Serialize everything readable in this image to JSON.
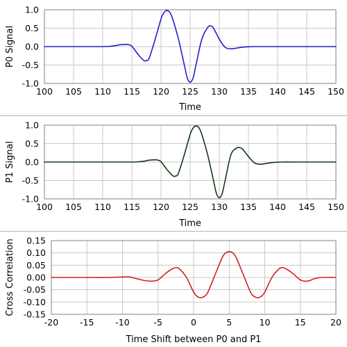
{
  "chart_data": [
    {
      "type": "line",
      "xlabel": "Time",
      "ylabel": "P0 Signal",
      "xlim": [
        100,
        150
      ],
      "ylim": [
        -1.0,
        1.0
      ],
      "xticks": [
        100,
        105,
        110,
        115,
        120,
        125,
        130,
        135,
        140,
        145,
        150
      ],
      "yticks": [
        -1.0,
        -0.5,
        0.0,
        0.5,
        1.0
      ],
      "xtick_labels": [
        "100",
        "105",
        "110",
        "115",
        "120",
        "125",
        "130",
        "135",
        "140",
        "145",
        "150"
      ],
      "ytick_labels": [
        "-1.0",
        "-0.5",
        "0.0",
        "0.5",
        "1.0"
      ],
      "grid": true,
      "color": "#1f1fcf",
      "series": [
        {
          "x": [
            100,
            106,
            108,
            110,
            111,
            112,
            113,
            114,
            114.5,
            115,
            116,
            117,
            117.5,
            118,
            119,
            120,
            120.5,
            121,
            121.5,
            122,
            123,
            124,
            124.5,
            125,
            125.5,
            126,
            127,
            128,
            128.5,
            129,
            130,
            131,
            132,
            133,
            134,
            135,
            136,
            138,
            140,
            150
          ],
          "values": [
            0,
            0,
            0,
            0,
            0.005,
            0.02,
            0.05,
            0.06,
            0.05,
            0.01,
            -0.2,
            -0.37,
            -0.38,
            -0.3,
            0.2,
            0.75,
            0.92,
            0.98,
            0.93,
            0.75,
            0.2,
            -0.5,
            -0.85,
            -0.97,
            -0.85,
            -0.5,
            0.2,
            0.52,
            0.56,
            0.5,
            0.2,
            -0.02,
            -0.06,
            -0.04,
            -0.015,
            -0.005,
            0,
            0,
            0,
            0
          ]
        }
      ]
    },
    {
      "type": "line",
      "xlabel": "Time",
      "ylabel": "P1 Signal",
      "xlim": [
        100,
        150
      ],
      "ylim": [
        -1.0,
        1.0
      ],
      "xticks": [
        100,
        105,
        110,
        115,
        120,
        125,
        130,
        135,
        140,
        145,
        150
      ],
      "yticks": [
        -1.0,
        -0.5,
        0.0,
        0.5,
        1.0
      ],
      "xtick_labels": [
        "100",
        "105",
        "110",
        "115",
        "120",
        "125",
        "130",
        "135",
        "140",
        "145",
        "150"
      ],
      "ytick_labels": [
        "-1.0",
        "-0.5",
        "0.0",
        "0.5",
        "1.0"
      ],
      "grid": true,
      "color": "#143814",
      "series": [
        {
          "x": [
            100,
            111,
            113,
            115,
            116,
            117,
            118,
            119,
            119.5,
            120,
            121,
            122,
            122.5,
            123,
            124,
            125,
            125.5,
            126,
            126.5,
            127,
            128,
            129,
            129.5,
            130,
            130.5,
            131,
            132,
            133,
            133.5,
            134,
            135,
            136,
            137,
            138,
            139,
            140,
            141,
            143,
            150
          ],
          "values": [
            0,
            0,
            0,
            0,
            0.005,
            0.02,
            0.05,
            0.06,
            0.05,
            0.01,
            -0.2,
            -0.37,
            -0.38,
            -0.3,
            0.2,
            0.75,
            0.92,
            0.98,
            0.93,
            0.75,
            0.2,
            -0.5,
            -0.85,
            -0.97,
            -0.85,
            -0.5,
            0.2,
            0.38,
            0.39,
            0.35,
            0.15,
            -0.02,
            -0.06,
            -0.04,
            -0.015,
            -0.005,
            0,
            0,
            0
          ]
        }
      ]
    },
    {
      "type": "line",
      "xlabel": "Time Shift between P0 and P1",
      "ylabel": "Cross Correlation",
      "xlim": [
        -20,
        20
      ],
      "ylim": [
        -0.15,
        0.15
      ],
      "xticks": [
        -20,
        -15,
        -10,
        -5,
        0,
        5,
        10,
        15,
        20
      ],
      "yticks": [
        -0.15,
        -0.1,
        -0.05,
        0.0,
        0.05,
        0.1,
        0.15
      ],
      "xtick_labels": [
        "-20",
        "-15",
        "-10",
        "-5",
        "0",
        "5",
        "10",
        "15",
        "20"
      ],
      "ytick_labels": [
        "-0.15",
        "-0.10",
        "-0.05",
        "0.00",
        "0.05",
        "0.10",
        "0.15"
      ],
      "grid": true,
      "color": "#d42020",
      "series": [
        {
          "x": [
            -20,
            -15,
            -12,
            -10,
            -9,
            -8,
            -7,
            -6,
            -5,
            -4,
            -3,
            -2.5,
            -2,
            -1,
            0,
            0.5,
            1,
            1.5,
            2,
            3,
            4,
            4.5,
            5,
            5.5,
            6,
            7,
            8,
            8.5,
            9,
            9.5,
            10,
            11,
            12,
            12.5,
            13,
            14,
            15,
            16,
            17,
            18,
            20
          ],
          "values": [
            0,
            0,
            0,
            0.002,
            0.002,
            -0.005,
            -0.012,
            -0.015,
            -0.01,
            0.015,
            0.035,
            0.04,
            0.035,
            0,
            -0.06,
            -0.077,
            -0.082,
            -0.077,
            -0.06,
            0.01,
            0.08,
            0.1,
            0.105,
            0.1,
            0.08,
            0.01,
            -0.06,
            -0.077,
            -0.082,
            -0.077,
            -0.06,
            0,
            0.035,
            0.04,
            0.035,
            0.015,
            -0.01,
            -0.015,
            -0.005,
            0,
            0
          ]
        }
      ]
    }
  ]
}
